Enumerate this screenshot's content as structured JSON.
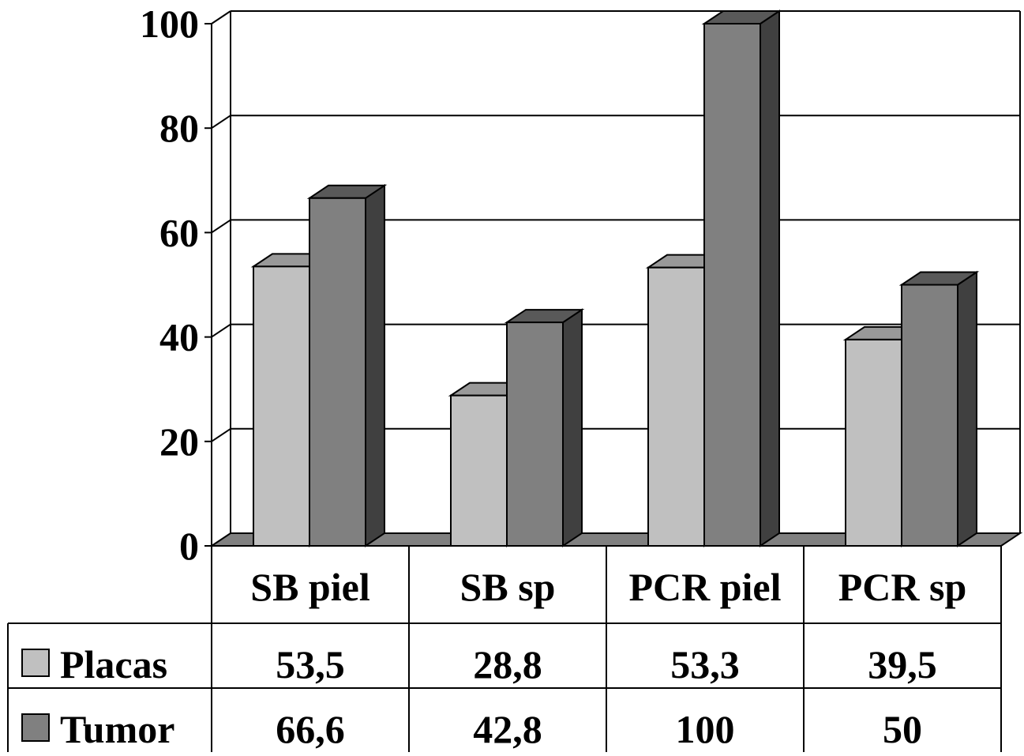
{
  "chart_data": {
    "type": "bar",
    "categories": [
      "SB piel",
      "SB sp",
      "PCR piel",
      "PCR sp"
    ],
    "series": [
      {
        "name": "Placas",
        "values": [
          53.5,
          28.8,
          53.3,
          39.5
        ],
        "labels": [
          "53,5",
          "28,8",
          "53,3",
          "39,5"
        ]
      },
      {
        "name": "Tumor",
        "values": [
          66.6,
          42.8,
          100,
          50
        ],
        "labels": [
          "66,6",
          "42,8",
          "100",
          "50"
        ]
      }
    ],
    "title": "",
    "xlabel": "",
    "ylabel": "",
    "ylim": [
      0,
      100
    ],
    "yticks": [
      "0",
      "20",
      "40",
      "60",
      "80",
      "100"
    ],
    "grid": true,
    "legend": "data-table-left",
    "colors": {
      "Placas": {
        "front": "#c0c0c0",
        "top": "#999999",
        "side": "#6b6b6b"
      },
      "Tumor": {
        "front": "#808080",
        "top": "#595959",
        "side": "#404040"
      },
      "floor": "#808080"
    }
  }
}
